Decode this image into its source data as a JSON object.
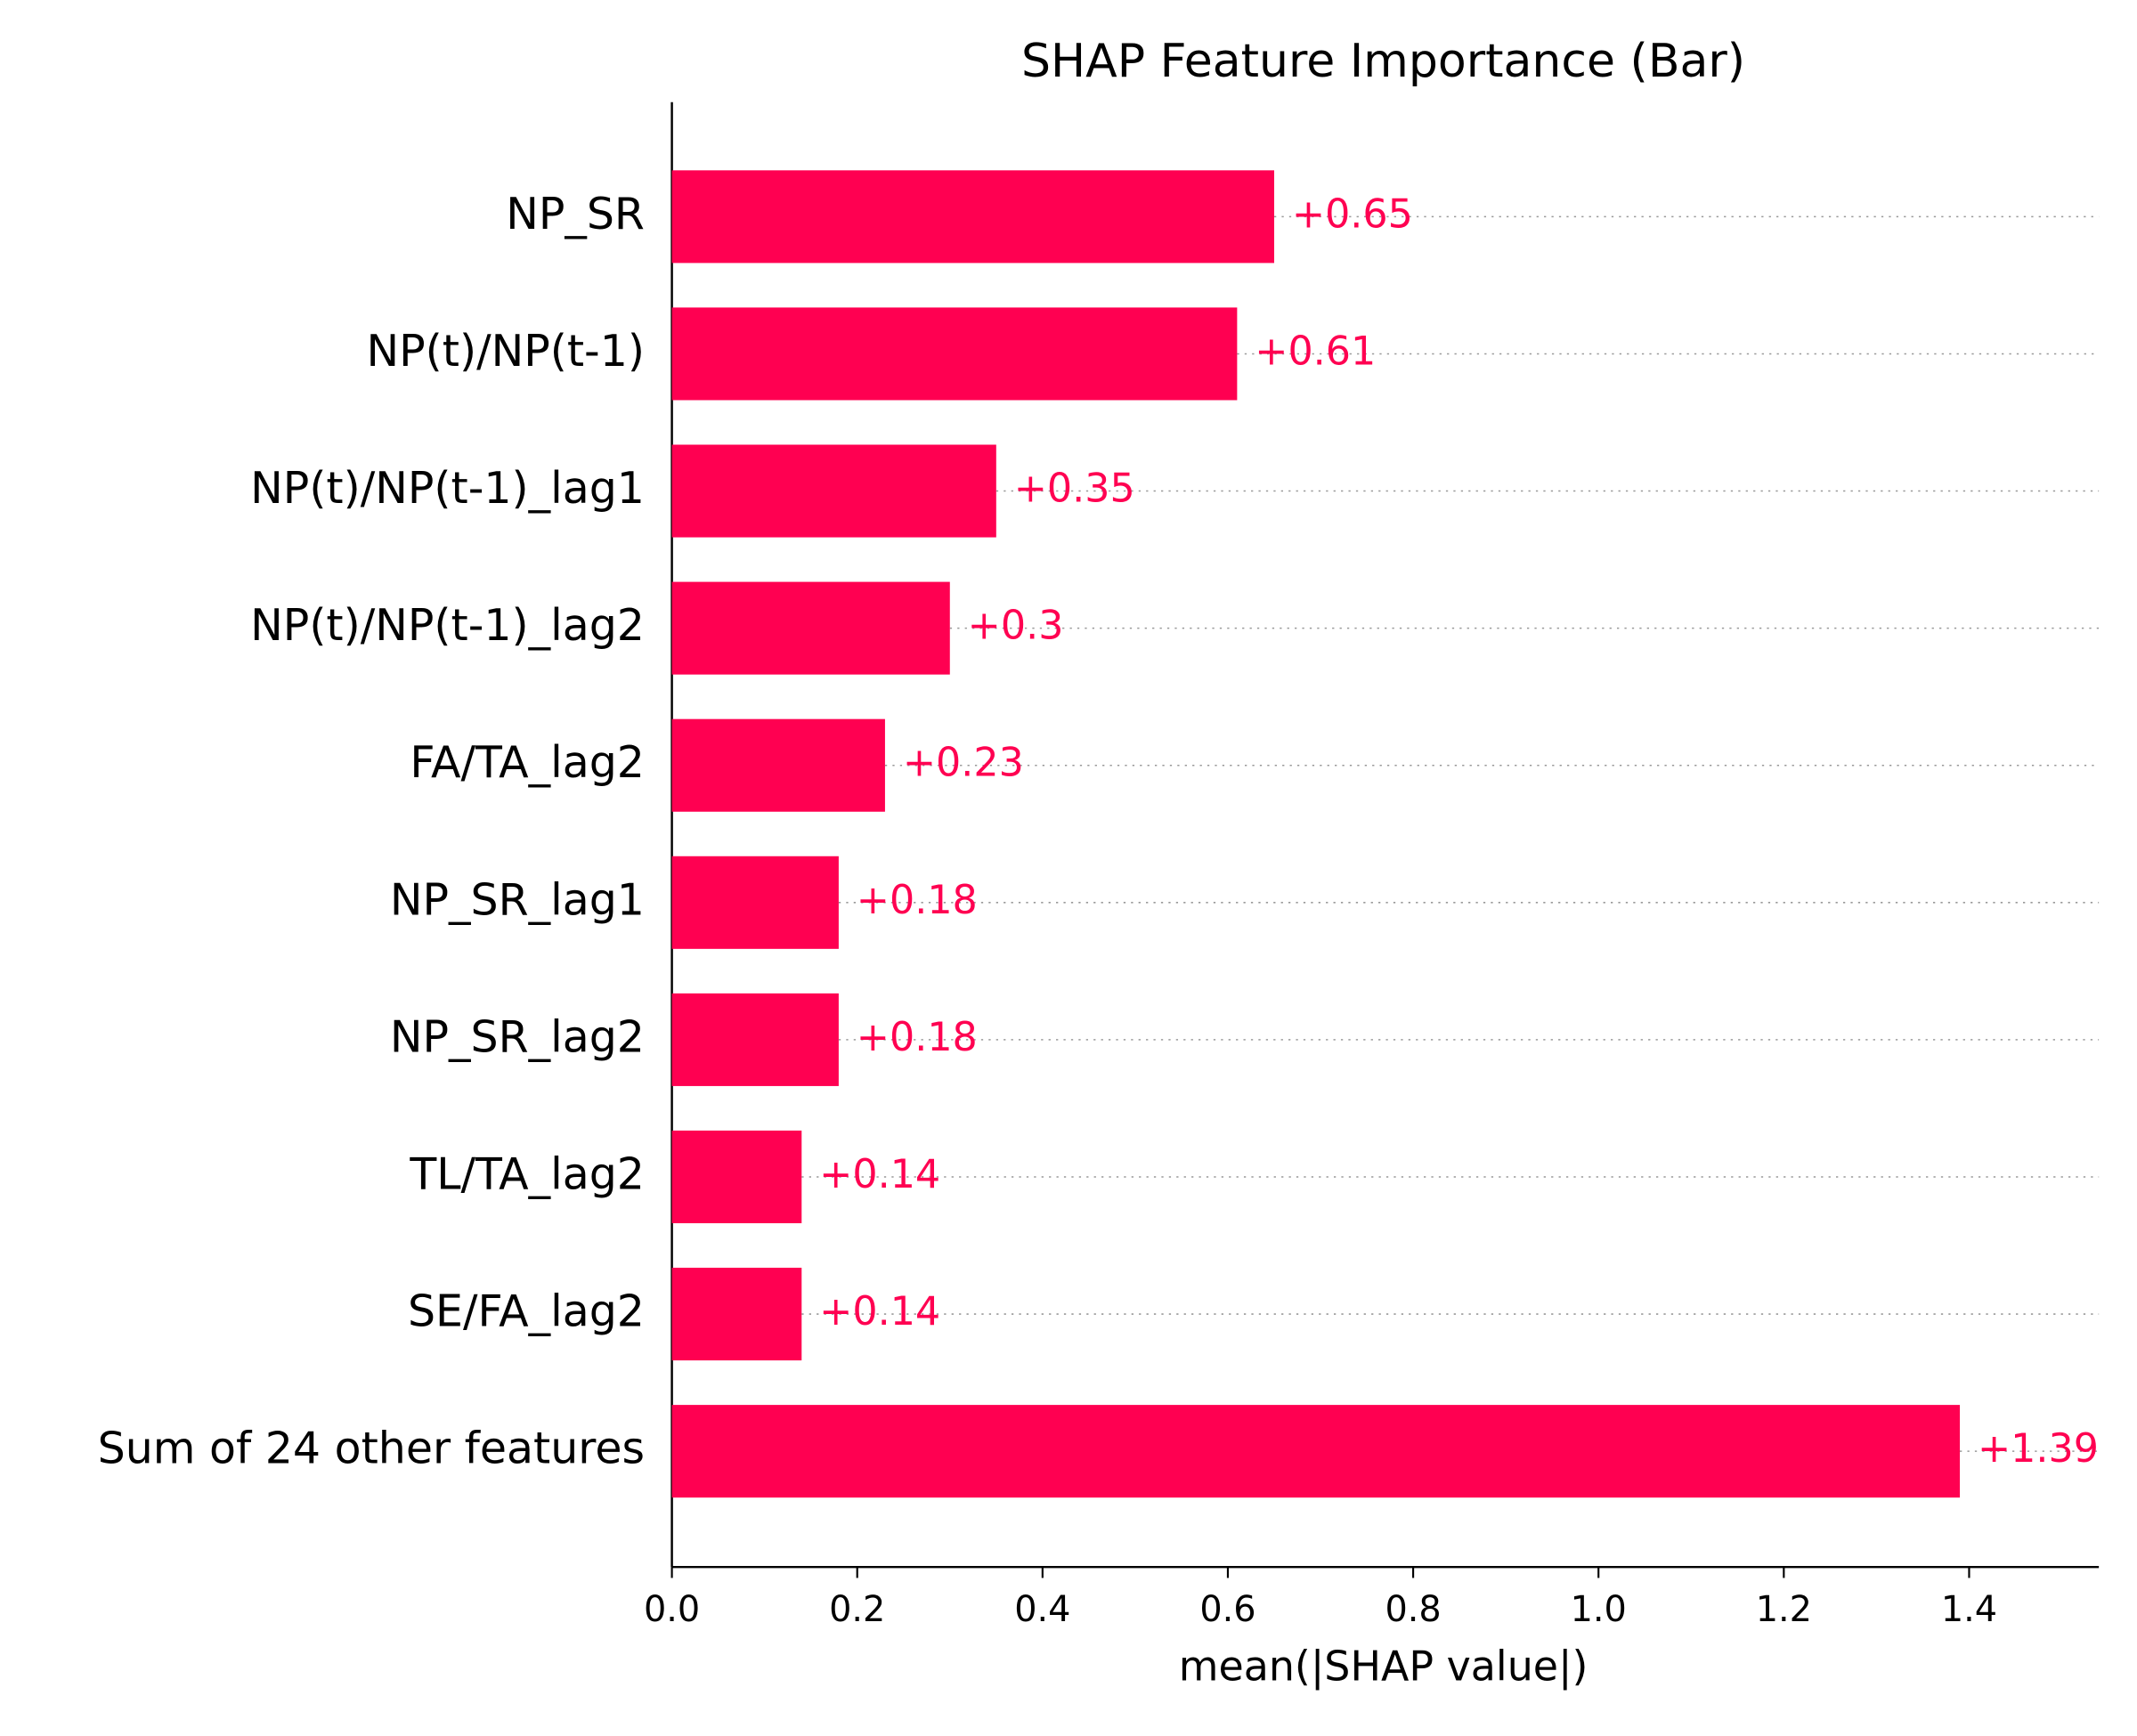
{
  "chart_data": {
    "type": "barh",
    "title": "SHAP Feature Importance (Bar)",
    "xlabel": "mean(|SHAP value|)",
    "categories": [
      "NP_SR",
      "NP(t)/NP(t-1)",
      "NP(t)/NP(t-1)_lag1",
      "NP(t)/NP(t-1)_lag2",
      "FA/TA_lag2",
      "NP_SR_lag1",
      "NP_SR_lag2",
      "TL/TA_lag2",
      "SE/FA_lag2",
      "Sum of 24 other features"
    ],
    "values": [
      0.65,
      0.61,
      0.35,
      0.3,
      0.23,
      0.18,
      0.18,
      0.14,
      0.14,
      1.39
    ],
    "value_labels": [
      "+0.65",
      "+0.61",
      "+0.35",
      "+0.3",
      "+0.23",
      "+0.18",
      "+0.18",
      "+0.14",
      "+0.14",
      "+1.39"
    ],
    "color": "#ff0051",
    "xlim": [
      0,
      1.54
    ],
    "xticks": [
      {
        "value": 0,
        "label": "0.0"
      },
      0.2,
      0.4,
      0.6,
      0.8,
      {
        "value": 1,
        "label": "1.0"
      },
      1.2,
      1.4
    ],
    "grid": "dotted"
  }
}
